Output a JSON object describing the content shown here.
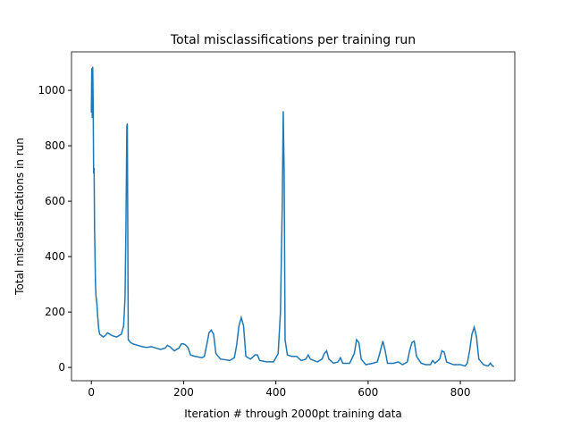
{
  "chart_data": {
    "type": "line",
    "title": "Total misclassifications per training run",
    "x_label": "Iteration # through 2000pt training data",
    "y_label": "Total misclassifications in run",
    "x": [
      0,
      1,
      2,
      3,
      4,
      5,
      6,
      7,
      8,
      9,
      10,
      12,
      14,
      16,
      18,
      22,
      26,
      30,
      35,
      40,
      45,
      50,
      55,
      60,
      65,
      70,
      73,
      75,
      77,
      78,
      79,
      80,
      85,
      90,
      100,
      110,
      120,
      130,
      140,
      150,
      160,
      165,
      170,
      180,
      190,
      195,
      200,
      205,
      210,
      215,
      225,
      240,
      245,
      250,
      255,
      260,
      265,
      270,
      280,
      290,
      300,
      310,
      315,
      320,
      325,
      330,
      335,
      345,
      355,
      360,
      365,
      380,
      395,
      405,
      410,
      414,
      416,
      418,
      420,
      425,
      435,
      445,
      455,
      465,
      470,
      475,
      490,
      500,
      505,
      510,
      515,
      525,
      535,
      540,
      545,
      560,
      570,
      575,
      580,
      585,
      595,
      610,
      620,
      625,
      632,
      637,
      642,
      655,
      665,
      675,
      685,
      690,
      695,
      700,
      705,
      715,
      725,
      735,
      740,
      745,
      755,
      760,
      765,
      770,
      785,
      800,
      810,
      815,
      820,
      825,
      830,
      835,
      840,
      850,
      860,
      865,
      870,
      873
    ],
    "series": [
      {
        "name": "misclassifications",
        "color": "#1f77b4",
        "values": [
          920,
          1080,
          900,
          1085,
          950,
          700,
          720,
          500,
          400,
          300,
          260,
          230,
          180,
          140,
          120,
          115,
          110,
          115,
          125,
          120,
          115,
          112,
          110,
          115,
          120,
          150,
          250,
          500,
          870,
          880,
          500,
          100,
          90,
          85,
          80,
          75,
          72,
          75,
          70,
          65,
          70,
          80,
          75,
          60,
          70,
          85,
          85,
          80,
          70,
          45,
          40,
          35,
          40,
          80,
          125,
          135,
          120,
          50,
          30,
          28,
          25,
          35,
          80,
          150,
          180,
          150,
          40,
          30,
          45,
          45,
          25,
          20,
          20,
          50,
          200,
          600,
          925,
          700,
          100,
          45,
          40,
          40,
          25,
          30,
          45,
          30,
          20,
          30,
          50,
          60,
          30,
          15,
          20,
          35,
          15,
          15,
          50,
          100,
          90,
          30,
          10,
          15,
          20,
          50,
          95,
          60,
          15,
          15,
          20,
          10,
          20,
          60,
          90,
          95,
          40,
          15,
          10,
          10,
          25,
          15,
          30,
          60,
          55,
          20,
          10,
          10,
          5,
          15,
          60,
          120,
          145,
          110,
          30,
          10,
          5,
          15,
          5,
          3
        ]
      }
    ],
    "xlim": [
      -43,
      918
    ],
    "ylim": [
      -48,
      1139
    ],
    "xticks": [
      0,
      200,
      400,
      600,
      800
    ],
    "yticks": [
      0,
      200,
      400,
      600,
      800,
      1000
    ]
  }
}
